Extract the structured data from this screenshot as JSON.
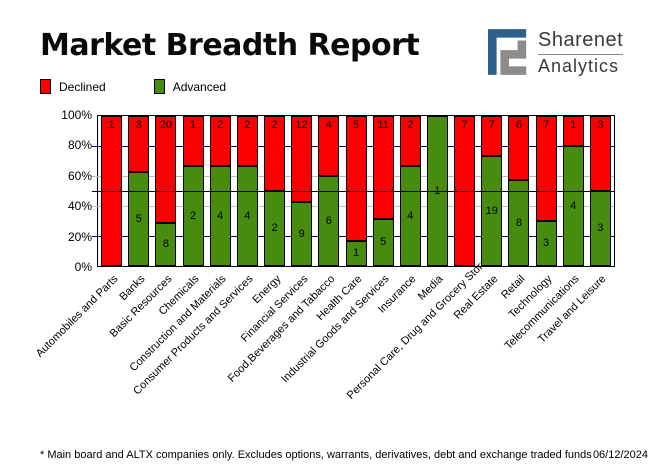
{
  "header": {
    "title": "Market Breadth Report",
    "logo": {
      "line1": "Sharenet",
      "line2": "Analytics",
      "mark_blue": "#2D5F8A",
      "mark_gray": "#8C8C8C"
    }
  },
  "legend": {
    "items": [
      {
        "label": "Declined",
        "color": "#FA0000"
      },
      {
        "label": "Advanced",
        "color": "#478C0E"
      }
    ]
  },
  "chart_data": {
    "type": "bar",
    "stacked": true,
    "normalized_percent": true,
    "title": "Market Breadth Report",
    "categories": [
      "Automobiles and Parts",
      "Banks",
      "Basic Resources",
      "Chemicals",
      "Construction and Materials",
      "Consumer Products and Services",
      "Energy",
      "Financial Services",
      "Food,Beverages and Tabacco",
      "Health Care",
      "Industrial Goods and Services",
      "Insurance",
      "Media",
      "Personal Care, Drug and Grocery Stores",
      "Real Estate",
      "Retail",
      "Technology",
      "Telecommunications",
      "Travel and Leisure"
    ],
    "series": [
      {
        "name": "Declined",
        "color": "#FA0000",
        "values": [
          1,
          3,
          20,
          1,
          2,
          2,
          2,
          12,
          4,
          5,
          11,
          2,
          0,
          7,
          7,
          6,
          7,
          1,
          3
        ]
      },
      {
        "name": "Advanced",
        "color": "#478C0E",
        "values": [
          0,
          5,
          8,
          2,
          4,
          4,
          2,
          9,
          6,
          1,
          5,
          4,
          1,
          0,
          19,
          8,
          3,
          4,
          3
        ]
      }
    ],
    "ylim": [
      0,
      100
    ],
    "yticks": [
      {
        "percent": 0,
        "label": "0%"
      },
      {
        "percent": 20,
        "label": "20%"
      },
      {
        "percent": 40,
        "label": "40%"
      },
      {
        "percent": 60,
        "label": "60%"
      },
      {
        "percent": 80,
        "label": "80%"
      },
      {
        "percent": 100,
        "label": "100%"
      }
    ],
    "gridlines": [
      {
        "percent": 20,
        "color": "#000080",
        "over_bars": false
      },
      {
        "percent": 40,
        "color": "#BBBBBB",
        "over_bars": false
      },
      {
        "percent": 50,
        "color": "#000000",
        "over_bars": true
      },
      {
        "percent": 60,
        "color": "#BBBBBB",
        "over_bars": false
      },
      {
        "percent": 80,
        "color": "#000080",
        "over_bars": false
      }
    ],
    "legend_position": "top-left"
  },
  "footer": {
    "note": "* Main board and ALTX companies only. Excludes options, warrants, derivatives, debt and exchange traded funds",
    "date": "06/12/2024"
  }
}
